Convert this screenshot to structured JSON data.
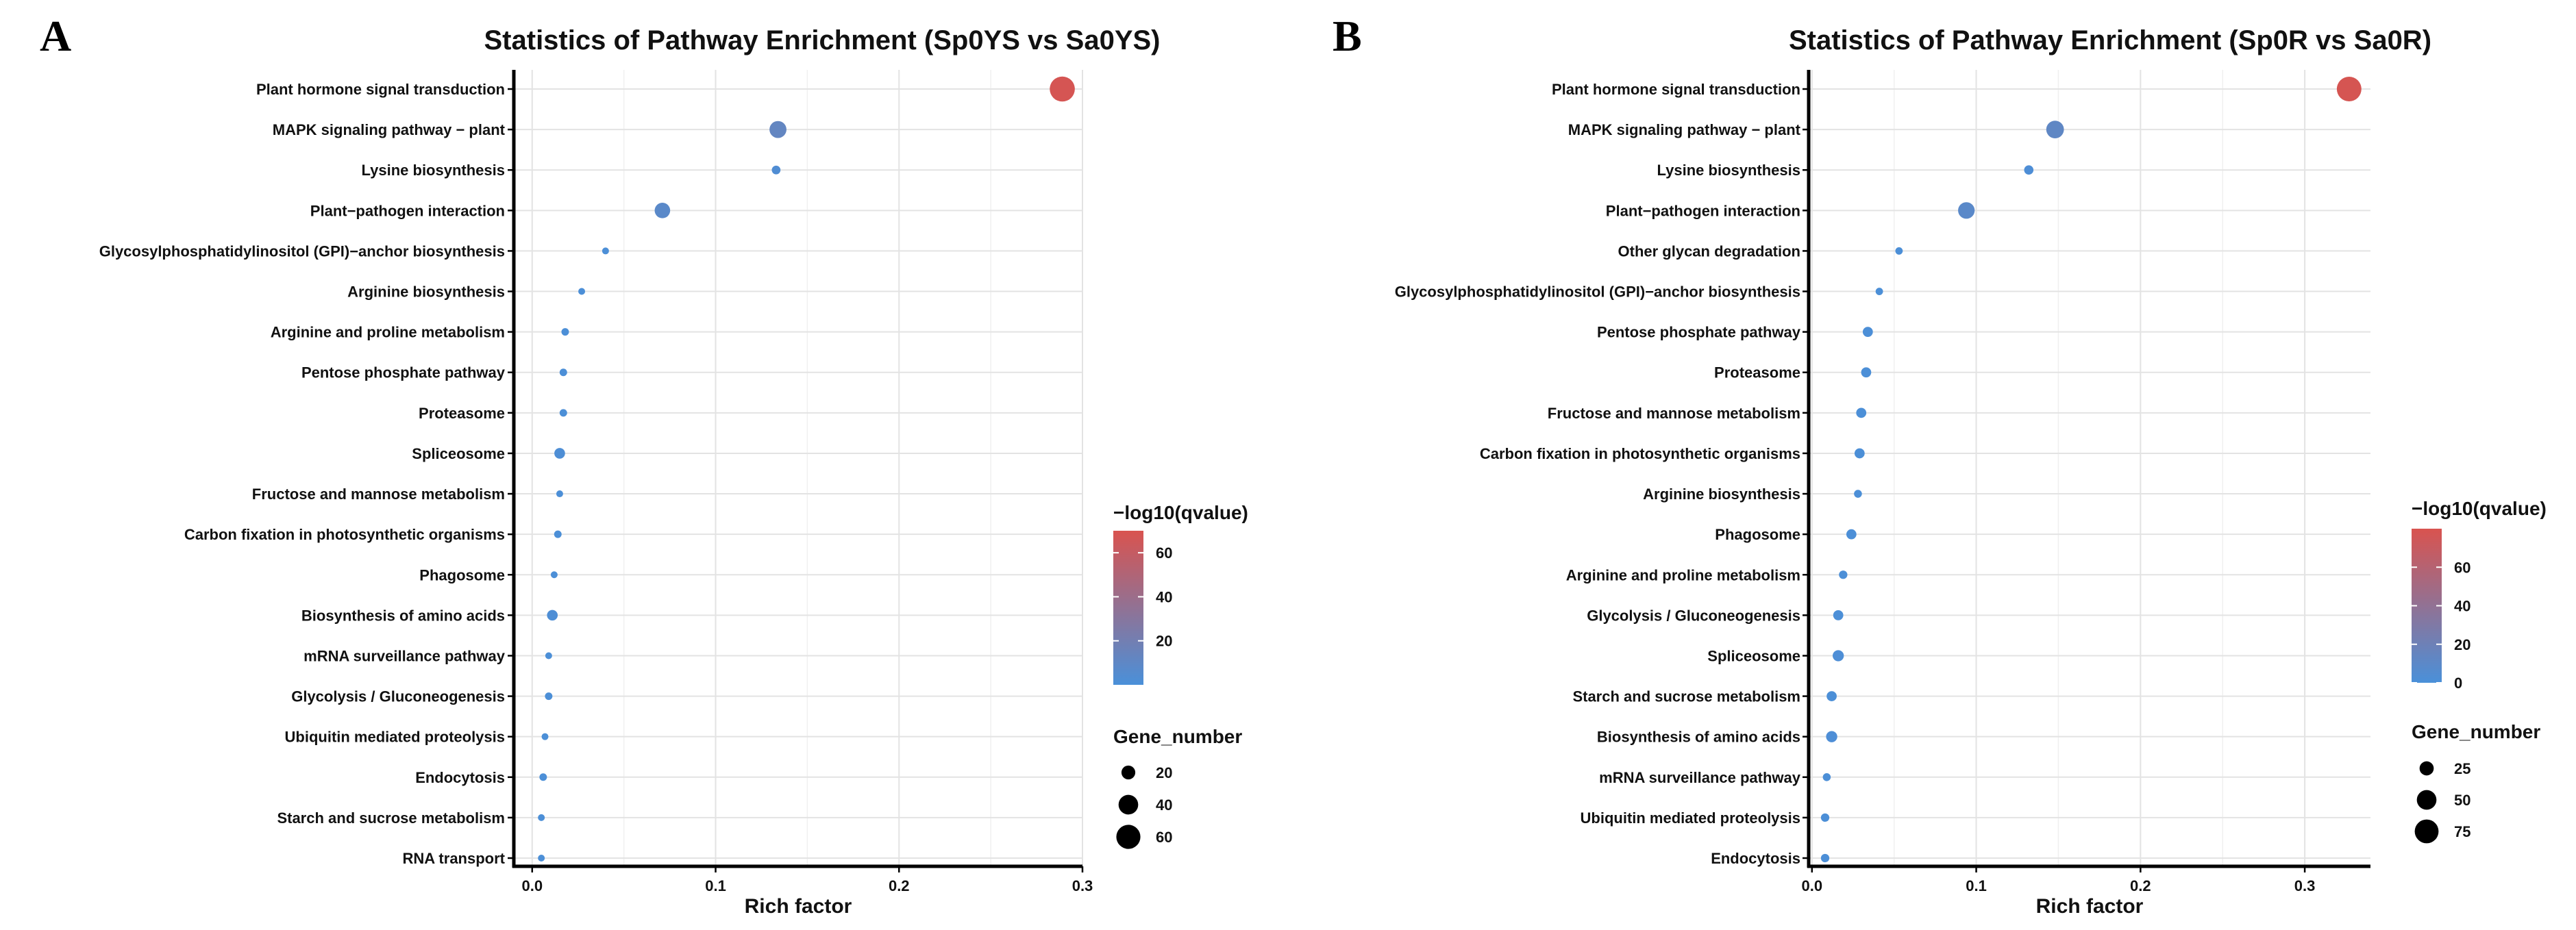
{
  "colors": {
    "low": "#4a90d9",
    "high": "#d9534f"
  },
  "chart_data": [
    {
      "type": "scatter",
      "panel_label": "A",
      "title": "Statistics of Pathway Enrichment (Sp0YS vs Sa0YS)",
      "xlabel": "Rich factor",
      "xlim": [
        -0.01,
        0.3
      ],
      "xticks": [
        0.0,
        0.1,
        0.2,
        0.3
      ],
      "xtick_labels": [
        "0.0",
        "0.1",
        "0.2",
        "0.3"
      ],
      "color_legend": {
        "title": "−log10(qvalue)",
        "range": [
          0,
          70
        ],
        "ticks": [
          20,
          40,
          60
        ],
        "tick_labels": [
          "20",
          "40",
          "60"
        ]
      },
      "size_legend": {
        "title": "Gene_number",
        "range": [
          5,
          70
        ],
        "values": [
          20,
          40,
          60
        ],
        "labels": [
          "20",
          "40",
          "60"
        ]
      },
      "points": [
        {
          "label": "Plant hormone signal transduction",
          "rich_factor": 0.289,
          "qvalue_log10": 68,
          "gene_number": 65
        },
        {
          "label": "MAPK signaling pathway − plant",
          "rich_factor": 0.134,
          "qvalue_log10": 12,
          "gene_number": 30
        },
        {
          "label": "Lysine biosynthesis",
          "rich_factor": 0.133,
          "qvalue_log10": 3,
          "gene_number": 8
        },
        {
          "label": "Plant−pathogen interaction",
          "rich_factor": 0.071,
          "qvalue_log10": 8,
          "gene_number": 25
        },
        {
          "label": "Glycosylphosphatidylinositol (GPI)−anchor biosynthesis",
          "rich_factor": 0.04,
          "qvalue_log10": 1,
          "gene_number": 5
        },
        {
          "label": "Arginine biosynthesis",
          "rich_factor": 0.027,
          "qvalue_log10": 1,
          "gene_number": 5
        },
        {
          "label": "Arginine and proline metabolism",
          "rich_factor": 0.018,
          "qvalue_log10": 1,
          "gene_number": 6
        },
        {
          "label": "Pentose phosphate pathway",
          "rich_factor": 0.017,
          "qvalue_log10": 1,
          "gene_number": 6
        },
        {
          "label": "Proteasome",
          "rich_factor": 0.017,
          "qvalue_log10": 1,
          "gene_number": 6
        },
        {
          "label": "Spliceosome",
          "rich_factor": 0.015,
          "qvalue_log10": 2,
          "gene_number": 12
        },
        {
          "label": "Fructose and mannose metabolism",
          "rich_factor": 0.015,
          "qvalue_log10": 1,
          "gene_number": 5
        },
        {
          "label": "Carbon fixation in photosynthetic organisms",
          "rich_factor": 0.014,
          "qvalue_log10": 1,
          "gene_number": 6
        },
        {
          "label": "Phagosome",
          "rich_factor": 0.012,
          "qvalue_log10": 1,
          "gene_number": 5
        },
        {
          "label": "Biosynthesis of amino acids",
          "rich_factor": 0.011,
          "qvalue_log10": 2,
          "gene_number": 12
        },
        {
          "label": "mRNA surveillance pathway",
          "rich_factor": 0.009,
          "qvalue_log10": 1,
          "gene_number": 5
        },
        {
          "label": "Glycolysis / Gluconeogenesis",
          "rich_factor": 0.009,
          "qvalue_log10": 1,
          "gene_number": 6
        },
        {
          "label": "Ubiquitin mediated proteolysis",
          "rich_factor": 0.007,
          "qvalue_log10": 1,
          "gene_number": 5
        },
        {
          "label": "Endocytosis",
          "rich_factor": 0.006,
          "qvalue_log10": 1,
          "gene_number": 6
        },
        {
          "label": "Starch and sucrose metabolism",
          "rich_factor": 0.005,
          "qvalue_log10": 1,
          "gene_number": 5
        },
        {
          "label": "RNA transport",
          "rich_factor": 0.005,
          "qvalue_log10": 1,
          "gene_number": 5
        }
      ]
    },
    {
      "type": "scatter",
      "panel_label": "B",
      "title": "Statistics of Pathway Enrichment (Sp0R vs Sa0R)",
      "xlabel": "Rich factor",
      "xlim": [
        -0.002,
        0.34
      ],
      "xticks": [
        0.0,
        0.1,
        0.2,
        0.3
      ],
      "xtick_labels": [
        "0.0",
        "0.1",
        "0.2",
        "0.3"
      ],
      "color_legend": {
        "title": "−log10(qvalue)",
        "range": [
          0,
          80
        ],
        "ticks": [
          0,
          20,
          40,
          60
        ],
        "tick_labels": [
          "0",
          "20",
          "40",
          "60"
        ]
      },
      "size_legend": {
        "title": "Gene_number",
        "range": [
          5,
          90
        ],
        "values": [
          25,
          50,
          75
        ],
        "labels": [
          "25",
          "50",
          "75"
        ]
      },
      "points": [
        {
          "label": "Plant hormone signal transduction",
          "rich_factor": 0.327,
          "qvalue_log10": 78,
          "gene_number": 80
        },
        {
          "label": "MAPK signaling pathway − plant",
          "rich_factor": 0.148,
          "qvalue_log10": 12,
          "gene_number": 40
        },
        {
          "label": "Lysine biosynthesis",
          "rich_factor": 0.132,
          "qvalue_log10": 2,
          "gene_number": 10
        },
        {
          "label": "Plant−pathogen interaction",
          "rich_factor": 0.094,
          "qvalue_log10": 9,
          "gene_number": 35
        },
        {
          "label": "Other glycan degradation",
          "rich_factor": 0.053,
          "qvalue_log10": 1,
          "gene_number": 6
        },
        {
          "label": "Glycosylphosphatidylinositol (GPI)−anchor biosynthesis",
          "rich_factor": 0.041,
          "qvalue_log10": 1,
          "gene_number": 6
        },
        {
          "label": "Pentose phosphate pathway",
          "rich_factor": 0.034,
          "qvalue_log10": 1,
          "gene_number": 12
        },
        {
          "label": "Proteasome",
          "rich_factor": 0.033,
          "qvalue_log10": 1,
          "gene_number": 12
        },
        {
          "label": "Fructose and mannose metabolism",
          "rich_factor": 0.03,
          "qvalue_log10": 1,
          "gene_number": 12
        },
        {
          "label": "Carbon fixation in photosynthetic organisms",
          "rich_factor": 0.029,
          "qvalue_log10": 1,
          "gene_number": 12
        },
        {
          "label": "Arginine biosynthesis",
          "rich_factor": 0.028,
          "qvalue_log10": 1,
          "gene_number": 7
        },
        {
          "label": "Phagosome",
          "rich_factor": 0.024,
          "qvalue_log10": 1,
          "gene_number": 12
        },
        {
          "label": "Arginine and proline metabolism",
          "rich_factor": 0.019,
          "qvalue_log10": 1,
          "gene_number": 8
        },
        {
          "label": "Glycolysis / Gluconeogenesis",
          "rich_factor": 0.016,
          "qvalue_log10": 1,
          "gene_number": 12
        },
        {
          "label": "Spliceosome",
          "rich_factor": 0.016,
          "qvalue_log10": 2,
          "gene_number": 15
        },
        {
          "label": "Starch and sucrose metabolism",
          "rich_factor": 0.012,
          "qvalue_log10": 1,
          "gene_number": 12
        },
        {
          "label": "Biosynthesis of amino acids",
          "rich_factor": 0.012,
          "qvalue_log10": 2,
          "gene_number": 15
        },
        {
          "label": "mRNA surveillance pathway",
          "rich_factor": 0.009,
          "qvalue_log10": 1,
          "gene_number": 7
        },
        {
          "label": "Ubiquitin mediated proteolysis",
          "rich_factor": 0.008,
          "qvalue_log10": 1,
          "gene_number": 8
        },
        {
          "label": "Endocytosis",
          "rich_factor": 0.008,
          "qvalue_log10": 1,
          "gene_number": 8
        }
      ]
    }
  ]
}
